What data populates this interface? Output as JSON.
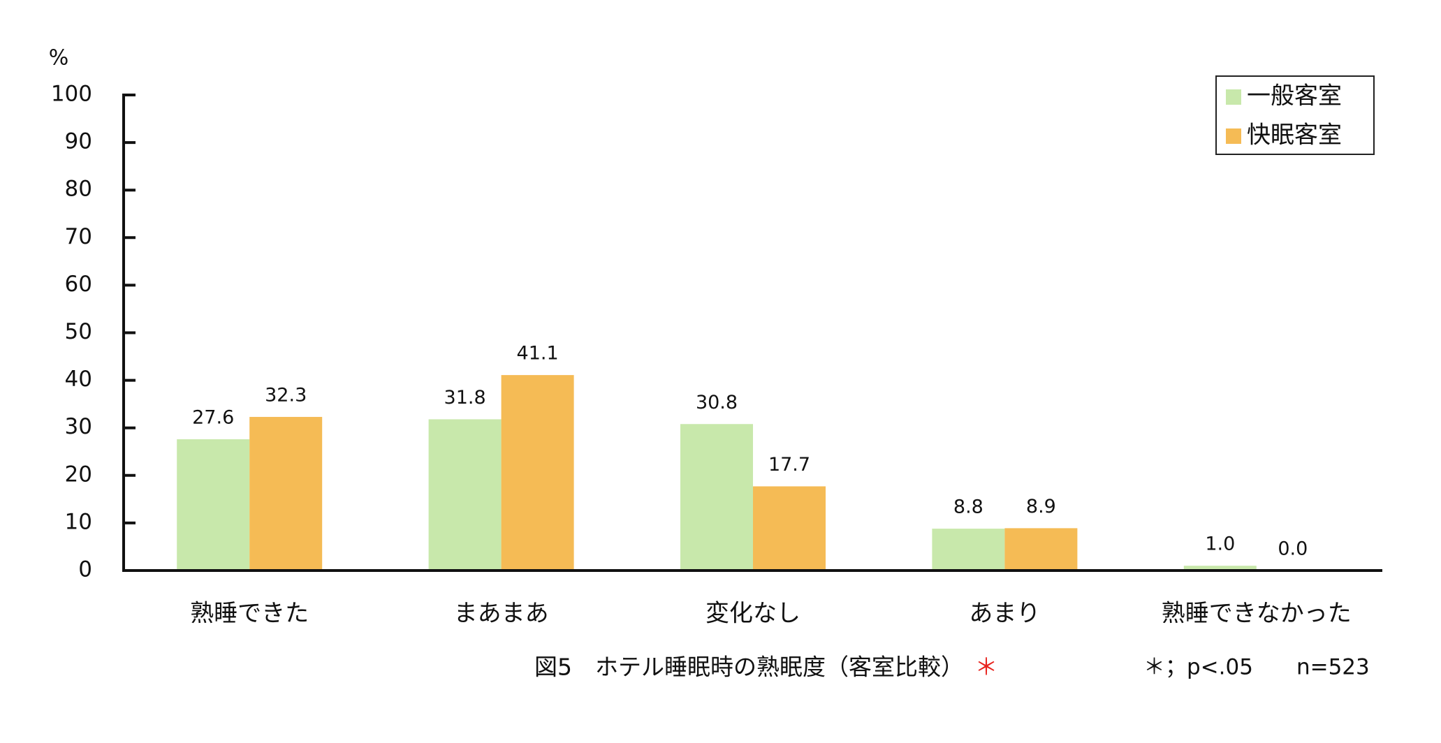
{
  "chart_data": {
    "type": "bar",
    "y_label": "%",
    "categories": [
      "熟睡できた",
      "まあまあ",
      "変化なし",
      "あまり",
      "熟睡できなかった"
    ],
    "series": [
      {
        "name": "一般客室",
        "color": "#c8e8ab",
        "values": [
          27.6,
          31.8,
          30.8,
          8.8,
          1.0
        ],
        "value_labels": [
          "27.6",
          "31.8",
          "30.8",
          "8.8",
          "1.0"
        ]
      },
      {
        "name": "快眠客室",
        "color": "#f5bb55",
        "values": [
          32.3,
          41.1,
          17.7,
          8.9,
          0.0
        ],
        "value_labels": [
          "32.3",
          "41.1",
          "17.7",
          "8.9",
          "0.0"
        ]
      }
    ],
    "ylim": [
      0,
      100
    ],
    "yticks": [
      0,
      10,
      20,
      30,
      40,
      50,
      60,
      70,
      80,
      90,
      100
    ],
    "legend": "top-right",
    "caption": "図5　ホテル睡眠時の熟眠度（客室比較）",
    "significance_marker": "＊",
    "significance_color": "#e8231e",
    "note": "＊；p<.05　　n=523"
  }
}
